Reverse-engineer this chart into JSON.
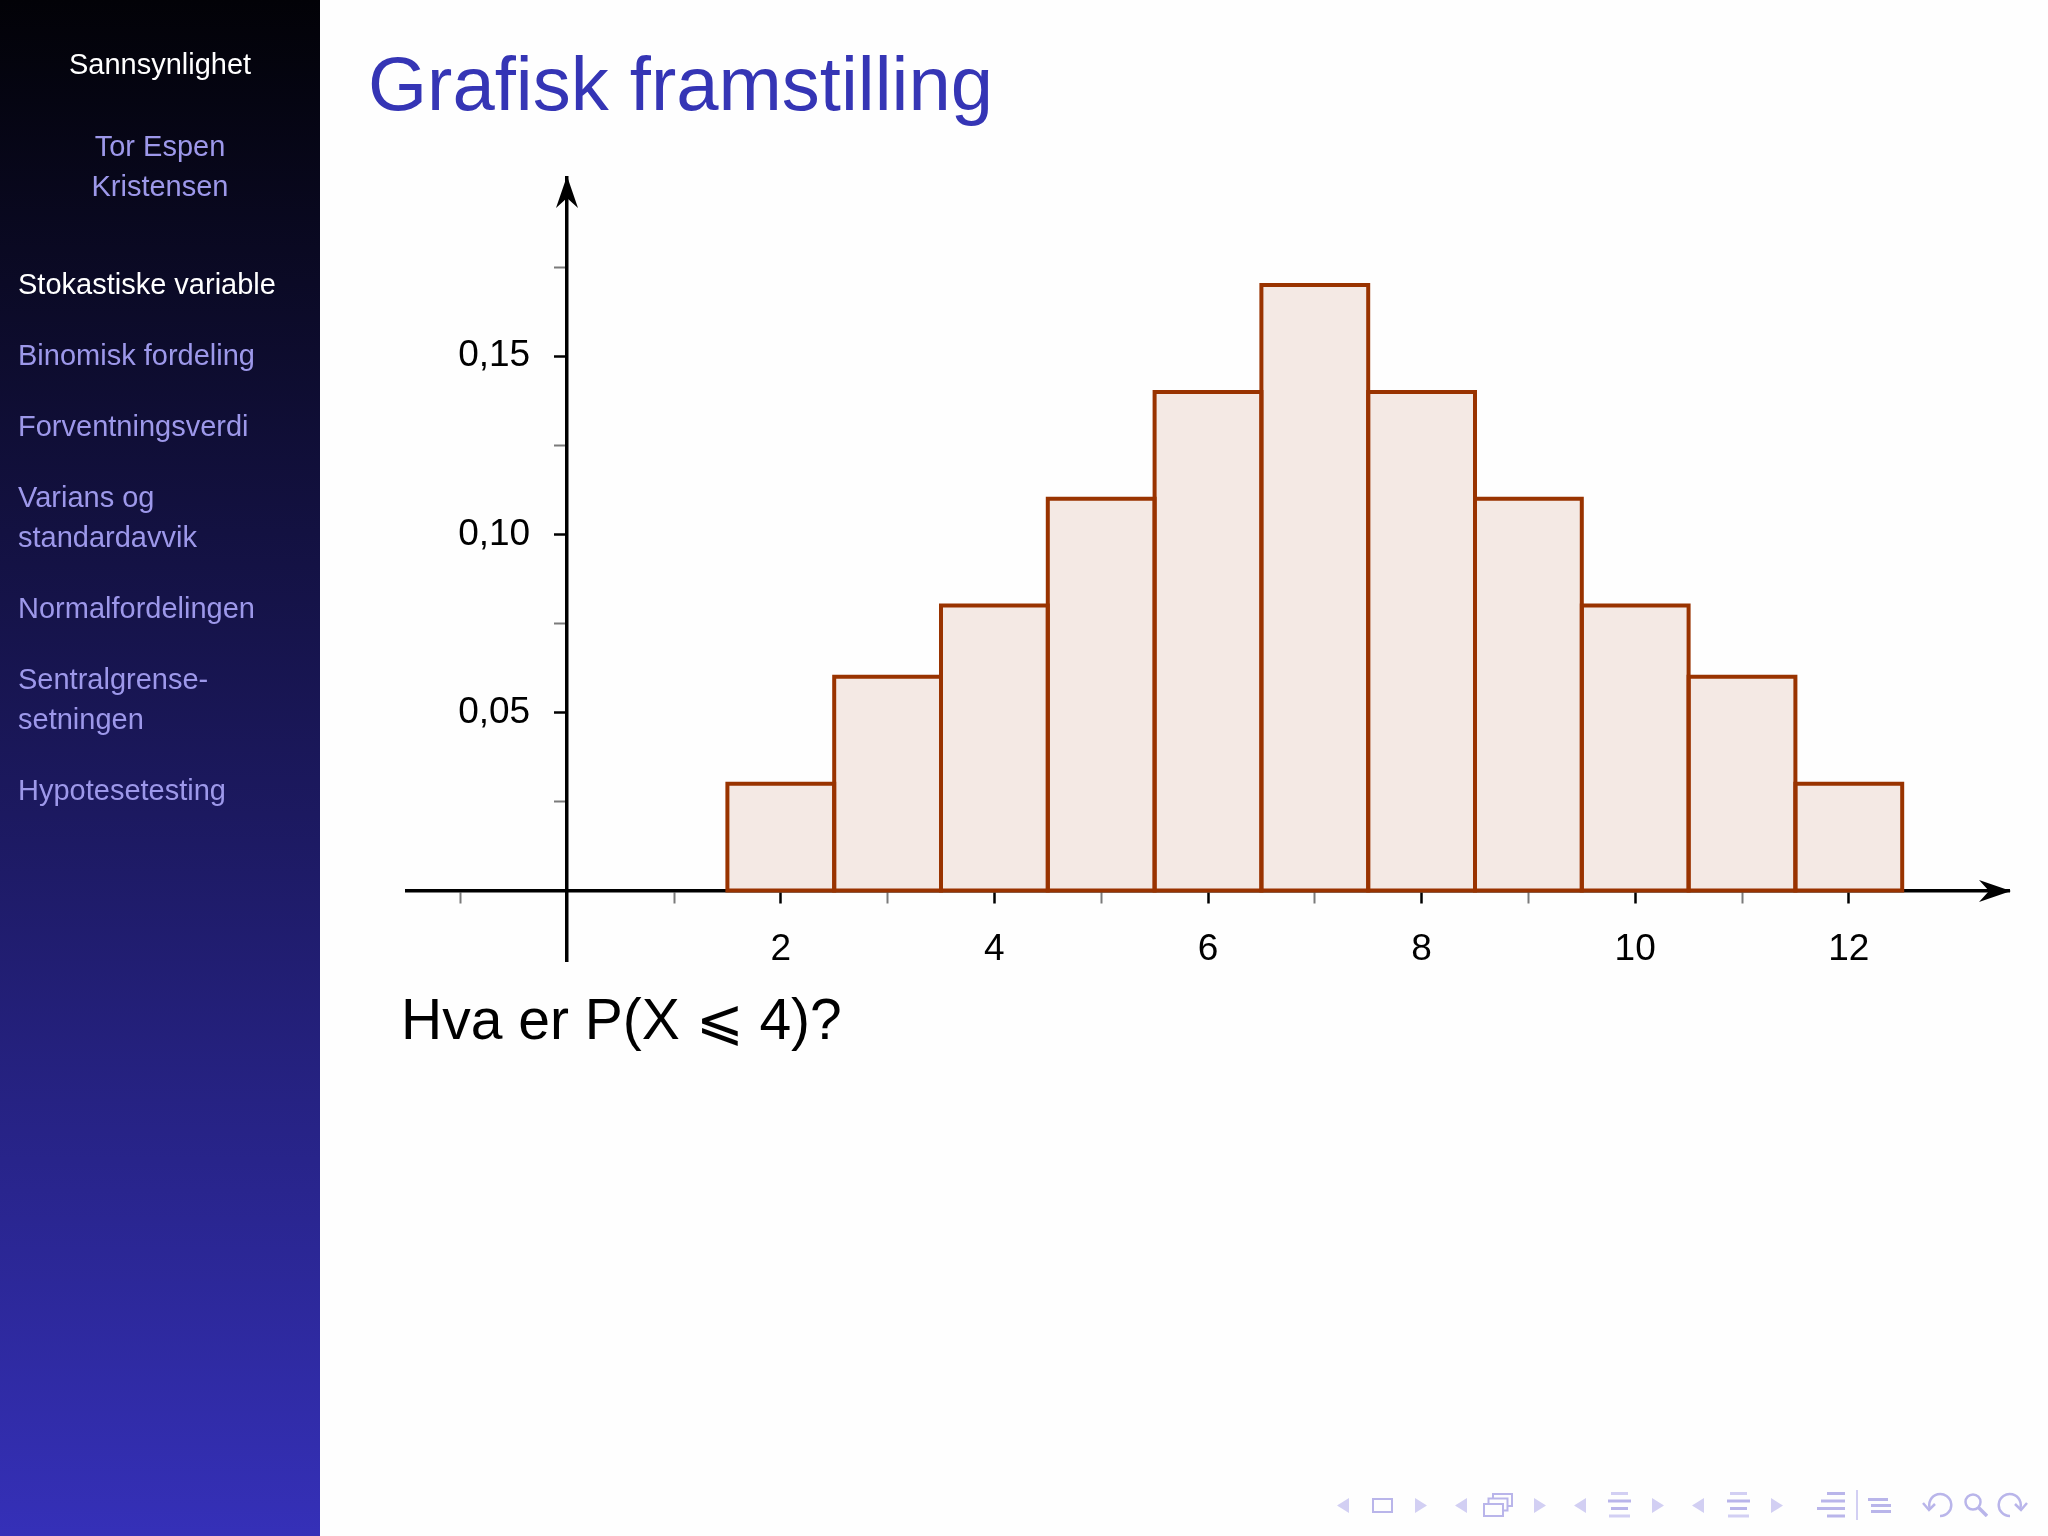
{
  "chart_data": {
    "type": "histogram",
    "title": "Grafisk framstilling",
    "bins": [
      1.5,
      2.5,
      3.5,
      4.5,
      5.5,
      6.5,
      7.5,
      8.5,
      9.5,
      10.5,
      11.5,
      12.5
    ],
    "values": [
      0.03,
      0.06,
      0.08,
      0.11,
      0.14,
      0.17,
      0.14,
      0.11,
      0.08,
      0.06,
      0.03
    ],
    "color": "#993300",
    "xlim": [
      -1.5,
      13.5
    ],
    "xticks": [
      {
        "value": -1,
        "label": null
      },
      {
        "value": 1,
        "label": null
      },
      2,
      {
        "value": 3,
        "label": null
      },
      4,
      {
        "value": 5,
        "label": null
      },
      6,
      {
        "value": 7,
        "label": null
      },
      8,
      {
        "value": 9,
        "label": null
      },
      10,
      {
        "value": 11,
        "label": null
      },
      12
    ],
    "ylim": [
      -0.02,
      0.2
    ],
    "yticks": [
      {
        "value": 0.025,
        "label": null
      },
      {
        "value": 0.05,
        "label": "0,05"
      },
      {
        "value": 0.075,
        "label": null
      },
      {
        "value": 0.1,
        "label": "0,10"
      },
      {
        "value": 0.125,
        "label": null
      },
      {
        "value": 0.15,
        "label": "0,15"
      },
      {
        "value": 0.175,
        "label": null
      }
    ],
    "annotations": [
      "Sannsynlighet",
      "Tor Espen Kristensen",
      "Stokastiske variable",
      "Binomisk fordeling",
      "Forventningsverdi",
      "Varians og standardavvik",
      "Normalfordelingen",
      "Sentralgrense-setningen",
      "Hypotesetesting",
      "Hva er P(X ⩽ 4)?"
    ]
  }
}
